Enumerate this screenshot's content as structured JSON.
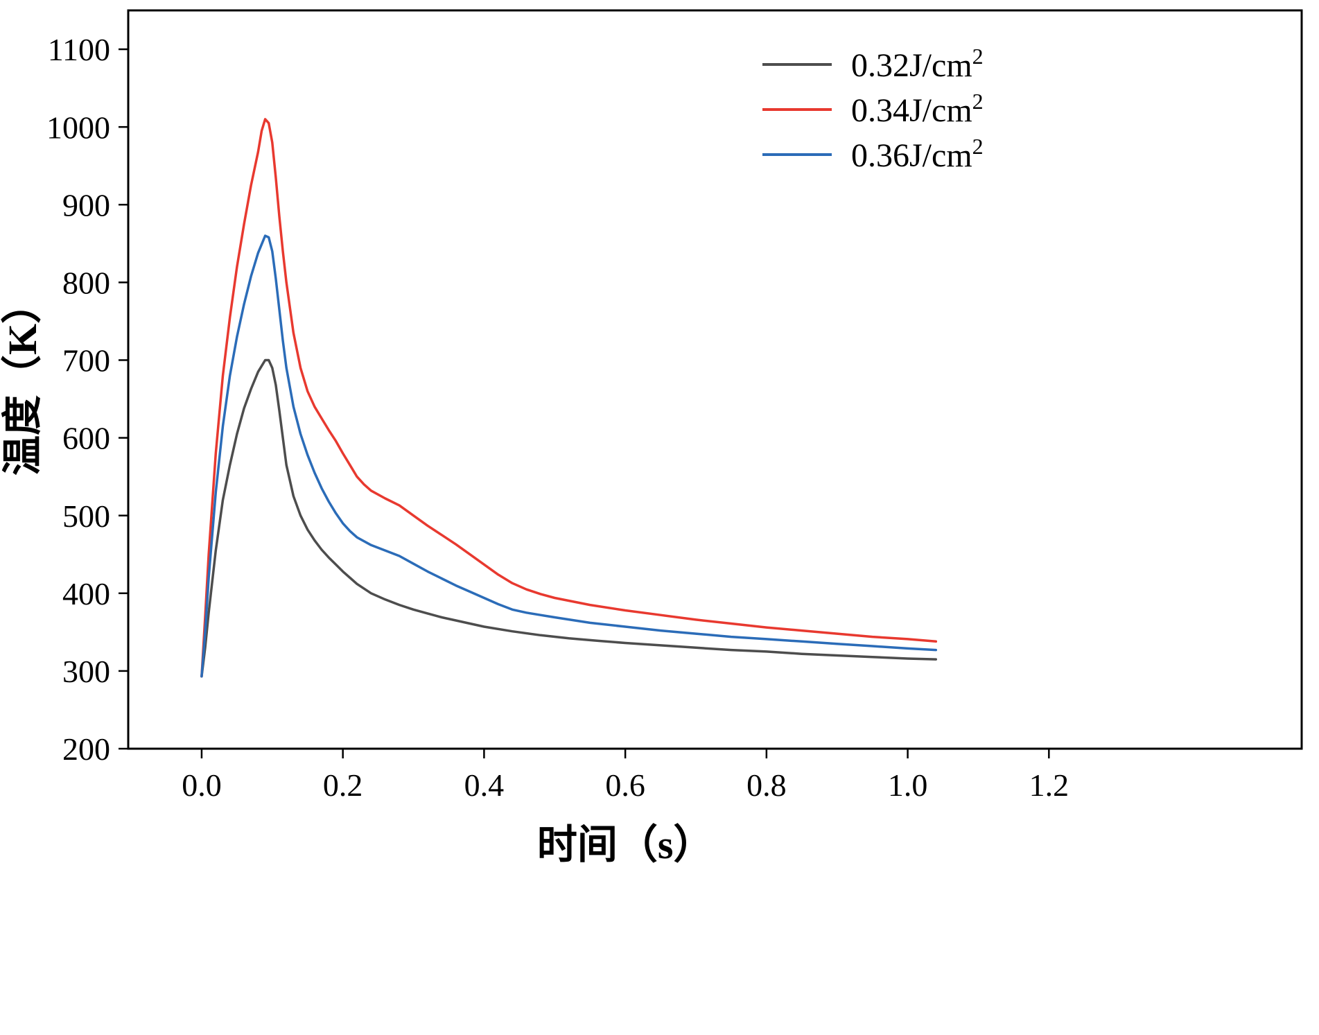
{
  "chart_data": {
    "type": "line",
    "title": "",
    "xlabel": "时间（s）",
    "ylabel": "温度（K）",
    "xlim": [
      -0.104,
      1.558
    ],
    "ylim": [
      200,
      1150
    ],
    "x_ticks": [
      0.0,
      0.2,
      0.4,
      0.6,
      0.8,
      1.0,
      1.2
    ],
    "y_ticks": [
      200,
      300,
      400,
      500,
      600,
      700,
      800,
      900,
      1000,
      1100
    ],
    "grid": false,
    "legend_position": "top-right-inside",
    "axis_color": "#000000",
    "series": [
      {
        "name": "0.32J/cm²",
        "label_base": "0.32J/cm",
        "label_sup": "2",
        "color": "#4d4d4d",
        "points": [
          [
            0,
            293
          ],
          [
            0.005,
            330
          ],
          [
            0.01,
            375
          ],
          [
            0.02,
            455
          ],
          [
            0.03,
            520
          ],
          [
            0.04,
            565
          ],
          [
            0.05,
            605
          ],
          [
            0.06,
            638
          ],
          [
            0.07,
            663
          ],
          [
            0.08,
            685
          ],
          [
            0.09,
            700
          ],
          [
            0.095,
            700
          ],
          [
            0.1,
            690
          ],
          [
            0.105,
            668
          ],
          [
            0.11,
            635
          ],
          [
            0.115,
            600
          ],
          [
            0.12,
            565
          ],
          [
            0.13,
            525
          ],
          [
            0.14,
            500
          ],
          [
            0.15,
            482
          ],
          [
            0.16,
            468
          ],
          [
            0.17,
            456
          ],
          [
            0.18,
            446
          ],
          [
            0.19,
            437
          ],
          [
            0.2,
            428
          ],
          [
            0.22,
            412
          ],
          [
            0.24,
            400
          ],
          [
            0.26,
            392
          ],
          [
            0.28,
            385
          ],
          [
            0.3,
            379
          ],
          [
            0.32,
            374
          ],
          [
            0.34,
            369
          ],
          [
            0.36,
            365
          ],
          [
            0.38,
            361
          ],
          [
            0.4,
            357
          ],
          [
            0.44,
            351
          ],
          [
            0.48,
            346
          ],
          [
            0.52,
            342
          ],
          [
            0.56,
            339
          ],
          [
            0.6,
            336
          ],
          [
            0.65,
            333
          ],
          [
            0.7,
            330
          ],
          [
            0.75,
            327
          ],
          [
            0.8,
            325
          ],
          [
            0.85,
            322
          ],
          [
            0.9,
            320
          ],
          [
            0.95,
            318
          ],
          [
            1.0,
            316
          ],
          [
            1.04,
            315
          ]
        ]
      },
      {
        "name": "0.34J/cm²",
        "label_base": "0.34J/cm",
        "label_sup": "2",
        "color": "#e8392f",
        "points": [
          [
            0,
            293
          ],
          [
            0.005,
            370
          ],
          [
            0.01,
            450
          ],
          [
            0.02,
            580
          ],
          [
            0.03,
            680
          ],
          [
            0.04,
            755
          ],
          [
            0.05,
            820
          ],
          [
            0.06,
            875
          ],
          [
            0.07,
            925
          ],
          [
            0.08,
            968
          ],
          [
            0.085,
            995
          ],
          [
            0.09,
            1010
          ],
          [
            0.095,
            1005
          ],
          [
            0.1,
            980
          ],
          [
            0.105,
            935
          ],
          [
            0.11,
            885
          ],
          [
            0.115,
            840
          ],
          [
            0.12,
            800
          ],
          [
            0.13,
            735
          ],
          [
            0.14,
            690
          ],
          [
            0.15,
            660
          ],
          [
            0.16,
            640
          ],
          [
            0.17,
            625
          ],
          [
            0.18,
            610
          ],
          [
            0.19,
            596
          ],
          [
            0.2,
            580
          ],
          [
            0.21,
            565
          ],
          [
            0.22,
            550
          ],
          [
            0.23,
            540
          ],
          [
            0.24,
            532
          ],
          [
            0.26,
            522
          ],
          [
            0.28,
            513
          ],
          [
            0.3,
            500
          ],
          [
            0.32,
            487
          ],
          [
            0.34,
            475
          ],
          [
            0.36,
            463
          ],
          [
            0.38,
            450
          ],
          [
            0.4,
            437
          ],
          [
            0.42,
            424
          ],
          [
            0.44,
            413
          ],
          [
            0.46,
            405
          ],
          [
            0.48,
            399
          ],
          [
            0.5,
            394
          ],
          [
            0.55,
            385
          ],
          [
            0.6,
            378
          ],
          [
            0.65,
            372
          ],
          [
            0.7,
            366
          ],
          [
            0.75,
            361
          ],
          [
            0.8,
            356
          ],
          [
            0.85,
            352
          ],
          [
            0.9,
            348
          ],
          [
            0.95,
            344
          ],
          [
            1.0,
            341
          ],
          [
            1.04,
            338
          ]
        ]
      },
      {
        "name": "0.36J/cm²",
        "label_base": "0.36J/cm",
        "label_sup": "2",
        "color": "#2b6cb8",
        "points": [
          [
            0,
            293
          ],
          [
            0.005,
            350
          ],
          [
            0.01,
            420
          ],
          [
            0.02,
            530
          ],
          [
            0.03,
            615
          ],
          [
            0.04,
            680
          ],
          [
            0.05,
            730
          ],
          [
            0.06,
            772
          ],
          [
            0.07,
            808
          ],
          [
            0.08,
            838
          ],
          [
            0.09,
            860
          ],
          [
            0.095,
            858
          ],
          [
            0.1,
            840
          ],
          [
            0.105,
            805
          ],
          [
            0.11,
            765
          ],
          [
            0.115,
            725
          ],
          [
            0.12,
            690
          ],
          [
            0.13,
            640
          ],
          [
            0.14,
            605
          ],
          [
            0.15,
            578
          ],
          [
            0.16,
            555
          ],
          [
            0.17,
            535
          ],
          [
            0.18,
            518
          ],
          [
            0.19,
            503
          ],
          [
            0.2,
            490
          ],
          [
            0.21,
            480
          ],
          [
            0.22,
            472
          ],
          [
            0.24,
            462
          ],
          [
            0.26,
            455
          ],
          [
            0.28,
            448
          ],
          [
            0.3,
            438
          ],
          [
            0.32,
            428
          ],
          [
            0.34,
            419
          ],
          [
            0.36,
            410
          ],
          [
            0.38,
            402
          ],
          [
            0.4,
            394
          ],
          [
            0.42,
            386
          ],
          [
            0.44,
            379
          ],
          [
            0.46,
            375
          ],
          [
            0.48,
            372
          ],
          [
            0.5,
            369
          ],
          [
            0.55,
            362
          ],
          [
            0.6,
            357
          ],
          [
            0.65,
            352
          ],
          [
            0.7,
            348
          ],
          [
            0.75,
            344
          ],
          [
            0.8,
            341
          ],
          [
            0.85,
            338
          ],
          [
            0.9,
            335
          ],
          [
            0.95,
            332
          ],
          [
            1.0,
            329
          ],
          [
            1.04,
            327
          ]
        ]
      }
    ]
  }
}
